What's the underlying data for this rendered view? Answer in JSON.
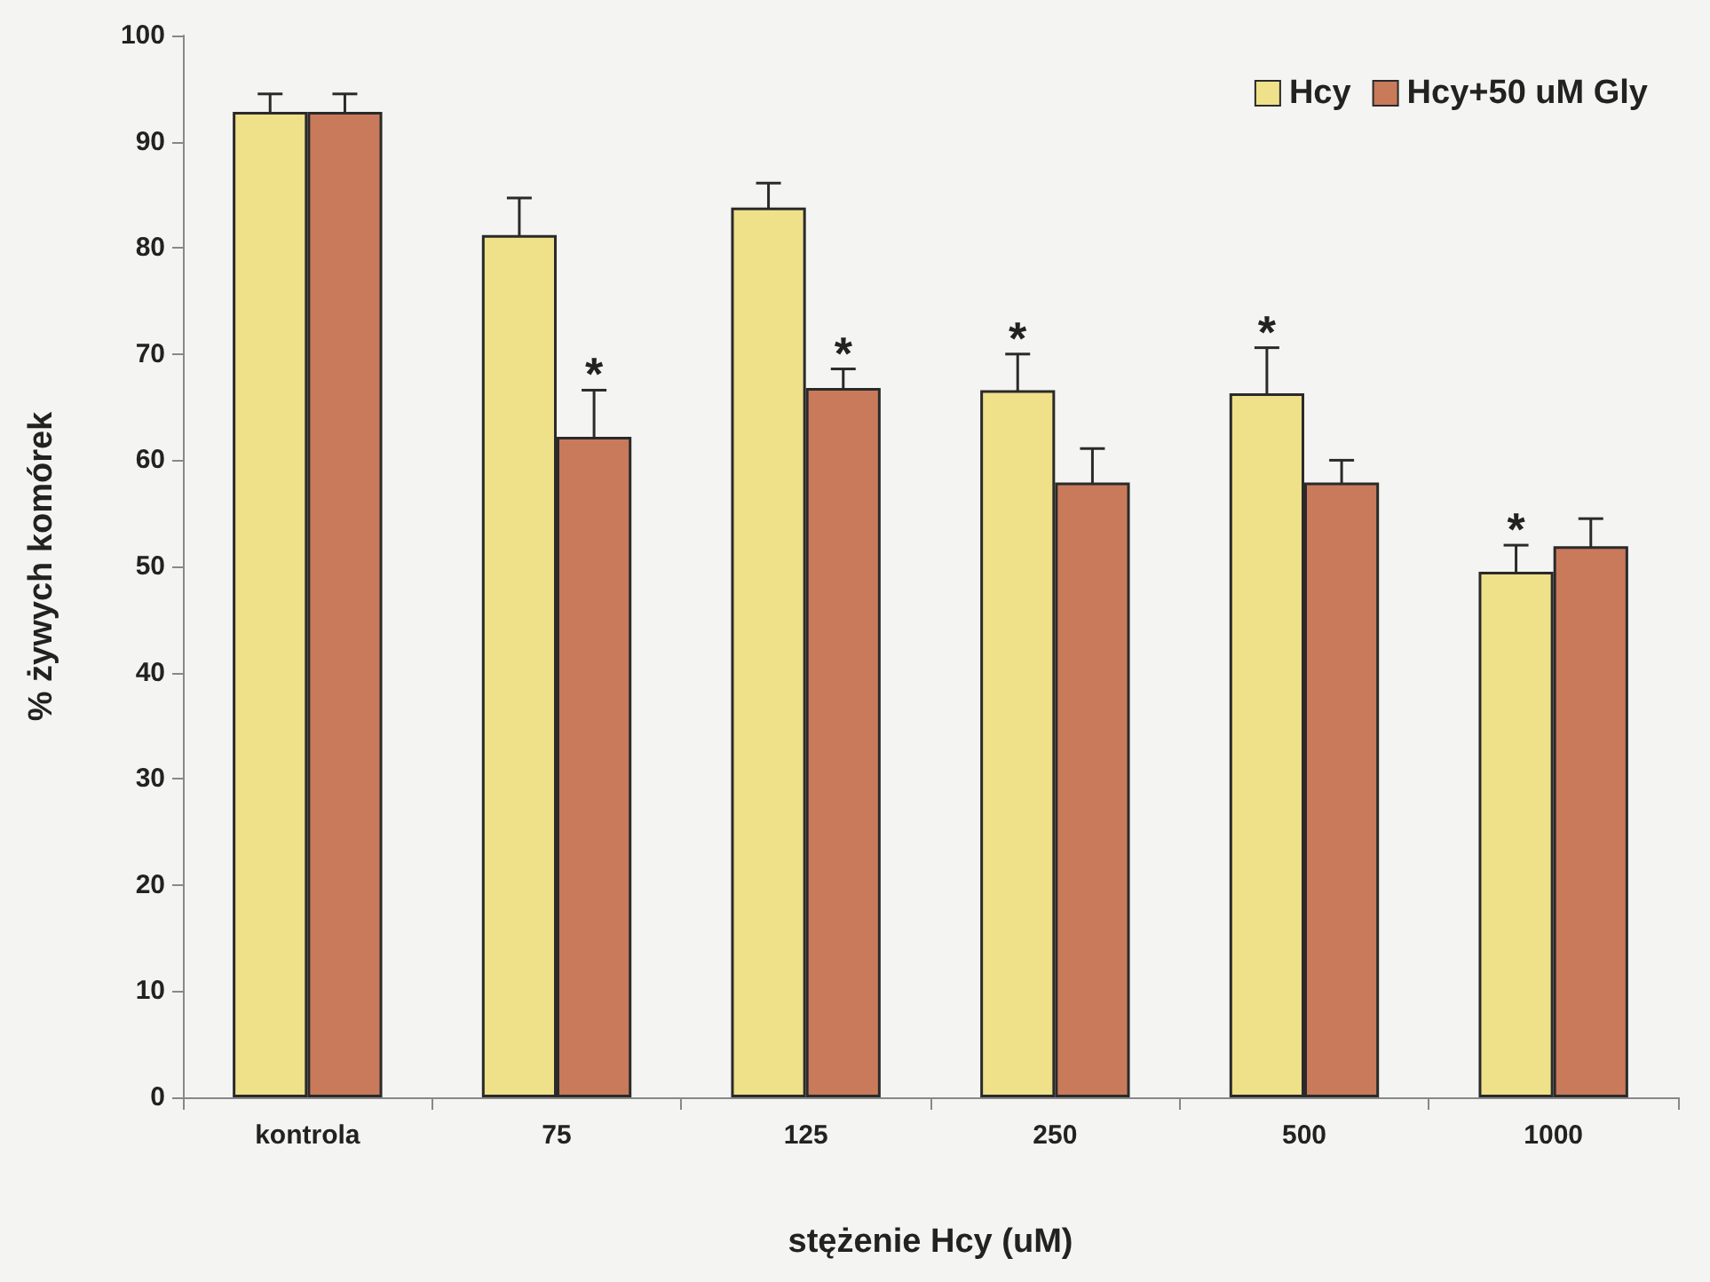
{
  "chart_data": {
    "type": "bar",
    "xlabel": "stężenie Hcy (uM)",
    "ylabel": "% żywych komórek",
    "categories": [
      "kontrola",
      "75",
      "125",
      "250",
      "500",
      "1000"
    ],
    "series": [
      {
        "name": "Hcy",
        "color": "#efe08a",
        "values": [
          92.8,
          81.2,
          83.8,
          66.6,
          66.3,
          49.5
        ],
        "errors": [
          1.7,
          3.5,
          2.3,
          3.4,
          4.3,
          2.5
        ]
      },
      {
        "name": "Hcy+50 uM Gly",
        "color": "#c87a5a",
        "values": [
          92.8,
          62.2,
          66.8,
          57.9,
          57.9,
          51.9
        ],
        "errors": [
          1.7,
          4.4,
          1.8,
          3.2,
          2.1,
          2.6
        ]
      }
    ],
    "annotations": [
      {
        "text": "*",
        "x": "75",
        "y": 62.2
      },
      {
        "text": "*",
        "x": "125",
        "y": 66.8
      },
      {
        "text": "*",
        "x": "250",
        "y": 66.6
      },
      {
        "text": "*",
        "x": "500",
        "y": 66.3
      },
      {
        "text": "*",
        "x": "1000",
        "y": 49.5
      }
    ],
    "ylim": [
      0,
      100
    ],
    "yticks": [
      0,
      10,
      20,
      30,
      40,
      50,
      60,
      70,
      80,
      90,
      100
    ],
    "grid": false,
    "legend": "top right"
  }
}
